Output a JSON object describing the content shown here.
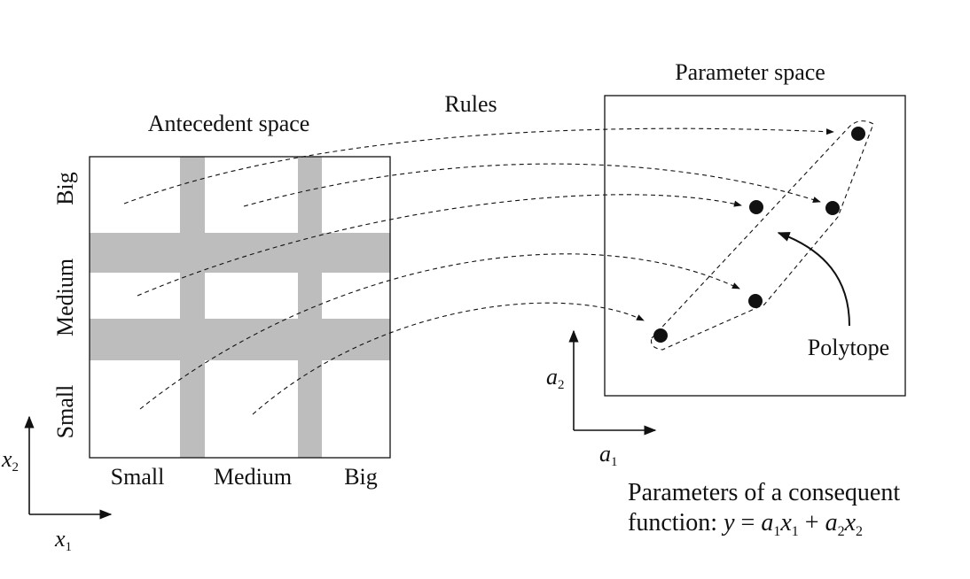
{
  "antecedent": {
    "title": "Antecedent space",
    "x_labels": [
      "Small",
      "Medium",
      "Big"
    ],
    "y_labels": [
      "Small",
      "Medium",
      "Big"
    ],
    "x_axis_var": "x",
    "x_axis_sub": "1",
    "y_axis_var": "x",
    "y_axis_sub": "2",
    "band_color": "#bdbdbd"
  },
  "rules_label": "Rules",
  "parameter": {
    "title": "Parameter space",
    "polytope_label": "Polytope",
    "a1_var": "a",
    "a1_sub": "1",
    "a2_var": "a",
    "a2_sub": "2"
  },
  "caption": {
    "line1": "Parameters of a consequent",
    "line2_prefix": "function: ",
    "eq": [
      {
        "t": "y",
        "style": "it"
      },
      {
        "t": " = ",
        "style": "rm"
      },
      {
        "t": "a",
        "style": "it"
      },
      {
        "t": "1",
        "style": "sub"
      },
      {
        "t": "x",
        "style": "it"
      },
      {
        "t": "1",
        "style": "sub"
      },
      {
        "t": " + ",
        "style": "rm"
      },
      {
        "t": "a",
        "style": "it"
      },
      {
        "t": "2",
        "style": "sub"
      },
      {
        "t": "x",
        "style": "it"
      },
      {
        "t": "2",
        "style": "sub"
      }
    ]
  },
  "colors": {
    "ink": "#111111",
    "band": "#bdbdbd"
  }
}
